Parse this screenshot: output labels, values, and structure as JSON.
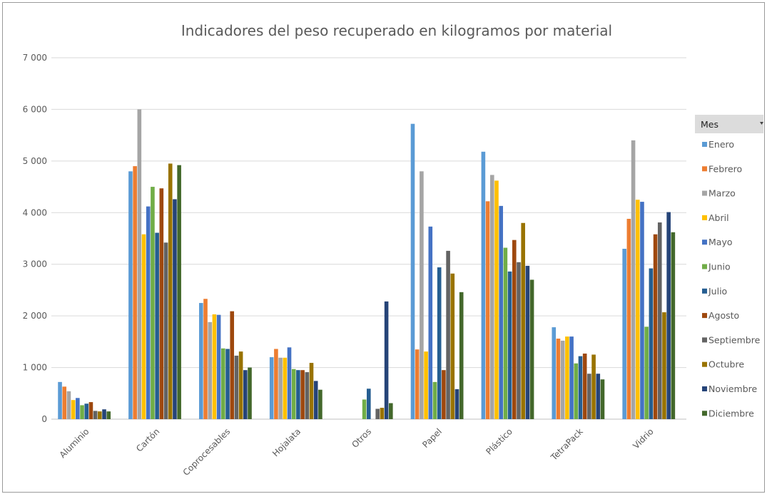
{
  "chart_data": {
    "type": "bar",
    "title": "Indicadores del peso recuperado en kilogramos por material",
    "xlabel": "",
    "ylabel": "",
    "ylim": [
      0,
      7000
    ],
    "yticks": [
      0,
      1000,
      2000,
      3000,
      4000,
      5000,
      6000,
      7000
    ],
    "ytick_labels": [
      "0",
      "1 000",
      "2 000",
      "3 000",
      "4 000",
      "5 000",
      "6 000",
      "7 000"
    ],
    "grid": true,
    "legend_position": "right",
    "legend_title": "Mes",
    "categories": [
      "Aluminio",
      "Cartón",
      "Coprocesables",
      "Hojalata",
      "Otros",
      "Papel",
      "Plástico",
      "TetraPack",
      "Vidrio"
    ],
    "series": [
      {
        "name": "Enero",
        "color": "#5B9BD5",
        "values": [
          720,
          4800,
          2250,
          1200,
          0,
          5720,
          5180,
          1780,
          3300
        ]
      },
      {
        "name": "Febrero",
        "color": "#ED7D31",
        "values": [
          630,
          4900,
          2330,
          1360,
          0,
          1350,
          4220,
          1560,
          3880
        ]
      },
      {
        "name": "Marzo",
        "color": "#A5A5A5",
        "values": [
          540,
          6000,
          1880,
          1190,
          0,
          4800,
          4730,
          1520,
          5400
        ]
      },
      {
        "name": "Abril",
        "color": "#FFC000",
        "values": [
          370,
          3580,
          2030,
          1190,
          0,
          1310,
          4620,
          1600,
          4250
        ]
      },
      {
        "name": "Mayo",
        "color": "#4472C4",
        "values": [
          410,
          4120,
          2020,
          1390,
          0,
          3730,
          4130,
          1600,
          4210
        ]
      },
      {
        "name": "Junio",
        "color": "#70AD47",
        "values": [
          270,
          4500,
          1370,
          970,
          380,
          720,
          3320,
          1080,
          1790
        ]
      },
      {
        "name": "Julio",
        "color": "#255E91",
        "values": [
          300,
          3610,
          1360,
          950,
          590,
          2940,
          2860,
          1220,
          2920
        ]
      },
      {
        "name": "Agosto",
        "color": "#9E480E",
        "values": [
          330,
          4470,
          2090,
          950,
          0,
          950,
          3470,
          1270,
          3580
        ]
      },
      {
        "name": "Septiembre",
        "color": "#636363",
        "values": [
          160,
          3420,
          1230,
          910,
          200,
          3260,
          3040,
          880,
          3810
        ]
      },
      {
        "name": "Octubre",
        "color": "#997300",
        "values": [
          150,
          4950,
          1310,
          1090,
          220,
          2820,
          3800,
          1250,
          2070
        ]
      },
      {
        "name": "Noviembre",
        "color": "#264478",
        "values": [
          190,
          4260,
          950,
          740,
          2280,
          580,
          2970,
          880,
          4010
        ]
      },
      {
        "name": "Diciembre",
        "color": "#43682B",
        "values": [
          150,
          4920,
          1000,
          570,
          310,
          2460,
          2700,
          770,
          3620
        ]
      }
    ]
  }
}
